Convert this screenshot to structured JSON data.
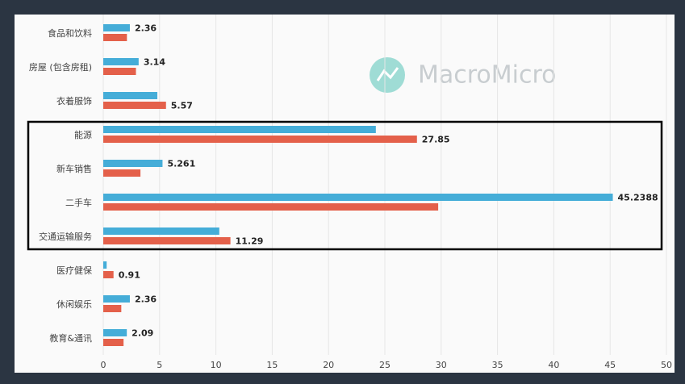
{
  "chart_data": {
    "type": "bar",
    "orientation": "horizontal",
    "watermark": "MacroMicro",
    "categories": [
      "食品和饮料",
      "房屋 (包含房租)",
      "衣着服饰",
      "能源",
      "新车销售",
      "二手车",
      "交通运输服务",
      "医疗健保",
      "休闲娱乐",
      "教育&通讯"
    ],
    "series": [
      {
        "color": "#45add8",
        "values": [
          2.36,
          3.14,
          4.8,
          24.2,
          5.261,
          45.2388,
          10.3,
          0.3,
          2.36,
          2.09
        ]
      },
      {
        "color": "#e4604a",
        "values": [
          2.1,
          2.9,
          5.57,
          27.85,
          3.3,
          29.735,
          11.29,
          0.91,
          1.6,
          1.8
        ]
      }
    ],
    "xlim": [
      0,
      50
    ],
    "xticks": [
      0,
      5,
      10,
      15,
      20,
      25,
      30,
      35,
      40,
      45,
      50
    ],
    "grid": true
  }
}
